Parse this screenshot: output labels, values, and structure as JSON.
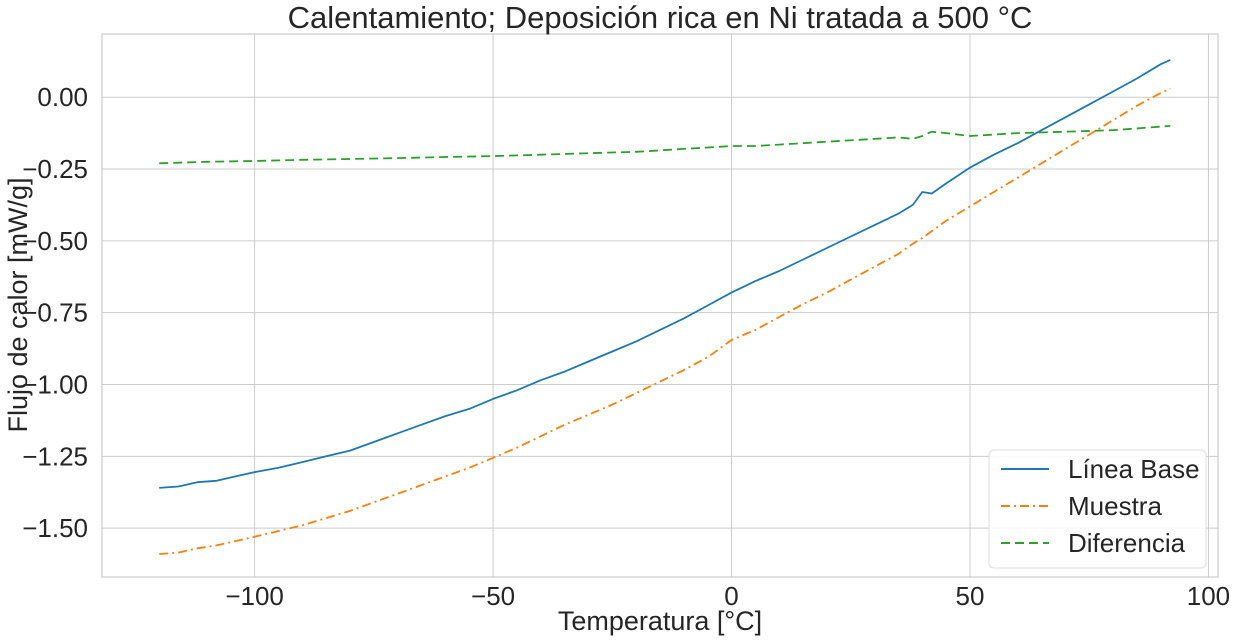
{
  "chart_data": {
    "type": "line",
    "title": "Calentamiento; Deposición rica en Ni tratada a 500 °C",
    "xlabel": "Temperatura [°C]",
    "ylabel": "Flujo de calor [mW/g]",
    "xlim": [
      -132,
      102
    ],
    "ylim": [
      -1.67,
      0.22
    ],
    "xticks": [
      -100,
      -50,
      0,
      50,
      100
    ],
    "xtick_labels": [
      "−100",
      "−50",
      "0",
      "50",
      "100"
    ],
    "yticks": [
      0.0,
      -0.25,
      -0.5,
      -0.75,
      -1.0,
      -1.25,
      -1.5
    ],
    "ytick_labels": [
      "0.00",
      "−0.25",
      "−0.50",
      "−0.75",
      "−1.00",
      "−1.25",
      "−1.50"
    ],
    "grid": true,
    "legend_position": "bottom-right",
    "series": [
      {
        "name": "Línea Base",
        "color": "#1f77b4",
        "style": "solid",
        "x": [
          -120,
          -116,
          -112,
          -108,
          -104,
          -100,
          -95,
          -90,
          -85,
          -80,
          -75,
          -70,
          -65,
          -60,
          -55,
          -50,
          -45,
          -40,
          -35,
          -30,
          -25,
          -20,
          -15,
          -10,
          -5,
          0,
          5,
          10,
          15,
          20,
          25,
          30,
          35,
          38,
          40,
          42,
          45,
          50,
          55,
          60,
          65,
          70,
          75,
          80,
          85,
          90,
          92
        ],
        "y": [
          -1.36,
          -1.355,
          -1.34,
          -1.335,
          -1.32,
          -1.305,
          -1.29,
          -1.27,
          -1.25,
          -1.23,
          -1.2,
          -1.17,
          -1.14,
          -1.11,
          -1.085,
          -1.05,
          -1.02,
          -0.985,
          -0.955,
          -0.92,
          -0.885,
          -0.85,
          -0.81,
          -0.77,
          -0.725,
          -0.68,
          -0.64,
          -0.605,
          -0.565,
          -0.525,
          -0.485,
          -0.445,
          -0.405,
          -0.375,
          -0.33,
          -0.335,
          -0.3,
          -0.245,
          -0.2,
          -0.16,
          -0.115,
          -0.07,
          -0.025,
          0.02,
          0.065,
          0.115,
          0.13
        ]
      },
      {
        "name": "Muestra",
        "color": "#ff7f0e",
        "style": "dashdot",
        "x": [
          -120,
          -116,
          -112,
          -108,
          -104,
          -100,
          -95,
          -90,
          -85,
          -80,
          -75,
          -70,
          -65,
          -60,
          -55,
          -50,
          -45,
          -40,
          -35,
          -30,
          -25,
          -20,
          -15,
          -10,
          -5,
          0,
          5,
          10,
          15,
          20,
          25,
          30,
          35,
          38,
          40,
          45,
          50,
          55,
          60,
          65,
          70,
          75,
          80,
          85,
          90,
          92
        ],
        "y": [
          -1.59,
          -1.585,
          -1.57,
          -1.56,
          -1.545,
          -1.53,
          -1.51,
          -1.49,
          -1.465,
          -1.44,
          -1.41,
          -1.38,
          -1.35,
          -1.32,
          -1.29,
          -1.255,
          -1.22,
          -1.18,
          -1.14,
          -1.105,
          -1.07,
          -1.03,
          -0.99,
          -0.95,
          -0.905,
          -0.845,
          -0.81,
          -0.765,
          -0.72,
          -0.68,
          -0.635,
          -0.59,
          -0.545,
          -0.51,
          -0.49,
          -0.43,
          -0.38,
          -0.33,
          -0.28,
          -0.23,
          -0.18,
          -0.13,
          -0.08,
          -0.03,
          0.015,
          0.03
        ]
      },
      {
        "name": "Diferencia",
        "color": "#2ca02c",
        "style": "dashed",
        "x": [
          -120,
          -110,
          -100,
          -90,
          -80,
          -70,
          -60,
          -50,
          -40,
          -30,
          -20,
          -15,
          -10,
          -5,
          0,
          5,
          10,
          20,
          30,
          35,
          38,
          40,
          42,
          45,
          50,
          60,
          70,
          80,
          92
        ],
        "y": [
          -0.23,
          -0.225,
          -0.222,
          -0.218,
          -0.215,
          -0.212,
          -0.208,
          -0.205,
          -0.2,
          -0.195,
          -0.19,
          -0.185,
          -0.18,
          -0.175,
          -0.17,
          -0.17,
          -0.165,
          -0.155,
          -0.145,
          -0.14,
          -0.145,
          -0.135,
          -0.12,
          -0.125,
          -0.135,
          -0.125,
          -0.12,
          -0.115,
          -0.1
        ]
      }
    ]
  }
}
